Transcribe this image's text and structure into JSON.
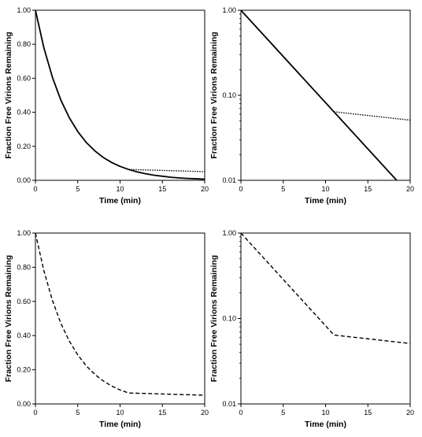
{
  "chart_data": [
    {
      "type": "line",
      "xlabel": "Time (min)",
      "ylabel": "Fraction Free Virions Remaining",
      "xlim": [
        0,
        20
      ],
      "ylim": [
        0,
        1
      ],
      "yscale": "linear",
      "x_ticks": [
        0,
        5,
        10,
        15,
        20
      ],
      "x_tick_labels": [
        "0",
        "5",
        "10",
        "15",
        "20"
      ],
      "y_ticks": [
        0,
        0.2,
        0.4,
        0.6,
        0.8,
        1.0
      ],
      "y_tick_labels": [
        "0.00",
        "0.20",
        "0.40",
        "0.60",
        "0.80",
        "1.00"
      ],
      "grid": false,
      "series": [
        {
          "style": "solid",
          "x": [
            0,
            1,
            2,
            3,
            4,
            5,
            6,
            7,
            8,
            9,
            10,
            11,
            12,
            13,
            14,
            15,
            16,
            17,
            18,
            19,
            20
          ],
          "y": [
            1.0,
            0.779,
            0.607,
            0.472,
            0.368,
            0.287,
            0.223,
            0.174,
            0.135,
            0.105,
            0.082,
            0.064,
            0.05,
            0.039,
            0.03,
            0.024,
            0.018,
            0.014,
            0.011,
            0.009,
            0.007
          ]
        },
        {
          "style": "dotted",
          "x": [
            11,
            20
          ],
          "y": [
            0.064,
            0.051
          ]
        }
      ]
    },
    {
      "type": "line",
      "xlabel": "Time (min)",
      "ylabel": "Fraction Free Virions Remaining",
      "xlim": [
        0,
        20
      ],
      "ylim": [
        0.01,
        1
      ],
      "yscale": "log",
      "x_ticks": [
        0,
        5,
        10,
        15,
        20
      ],
      "x_tick_labels": [
        "0",
        "5",
        "10",
        "15",
        "20"
      ],
      "y_ticks": [
        0.01,
        0.1,
        1
      ],
      "y_tick_labels": [
        "0.01",
        "0.10",
        "1.00"
      ],
      "grid": false,
      "series": [
        {
          "style": "solid",
          "x": [
            0,
            18.4
          ],
          "y": [
            1.0,
            0.01
          ]
        },
        {
          "style": "dotted",
          "x": [
            11,
            20
          ],
          "y": [
            0.064,
            0.051
          ]
        }
      ]
    },
    {
      "type": "line",
      "xlabel": "Time (min)",
      "ylabel": "Fraction Free Virions Remaining",
      "xlim": [
        0,
        20
      ],
      "ylim": [
        0,
        1
      ],
      "yscale": "linear",
      "x_ticks": [
        0,
        5,
        10,
        15,
        20
      ],
      "x_tick_labels": [
        "0",
        "5",
        "10",
        "15",
        "20"
      ],
      "y_ticks": [
        0,
        0.2,
        0.4,
        0.6,
        0.8,
        1.0
      ],
      "y_tick_labels": [
        "0.00",
        "0.20",
        "0.40",
        "0.60",
        "0.80",
        "1.00"
      ],
      "grid": false,
      "series": [
        {
          "style": "dashed",
          "x": [
            0,
            1,
            2,
            3,
            4,
            5,
            6,
            7,
            8,
            9,
            10,
            11,
            20
          ],
          "y": [
            1.0,
            0.779,
            0.607,
            0.472,
            0.368,
            0.287,
            0.223,
            0.174,
            0.135,
            0.105,
            0.082,
            0.064,
            0.051
          ]
        }
      ]
    },
    {
      "type": "line",
      "xlabel": "Time (min)",
      "ylabel": "Fraction Free Virions Remaining",
      "xlim": [
        0,
        20
      ],
      "ylim": [
        0.01,
        1
      ],
      "yscale": "log",
      "x_ticks": [
        0,
        5,
        10,
        15,
        20
      ],
      "x_tick_labels": [
        "0",
        "5",
        "10",
        "15",
        "20"
      ],
      "y_ticks": [
        0.01,
        0.1,
        1
      ],
      "y_tick_labels": [
        "0.01",
        "0.10",
        "1.00"
      ],
      "grid": false,
      "series": [
        {
          "style": "dashed",
          "x": [
            0,
            11,
            20
          ],
          "y": [
            1.0,
            0.064,
            0.051
          ]
        }
      ]
    }
  ]
}
